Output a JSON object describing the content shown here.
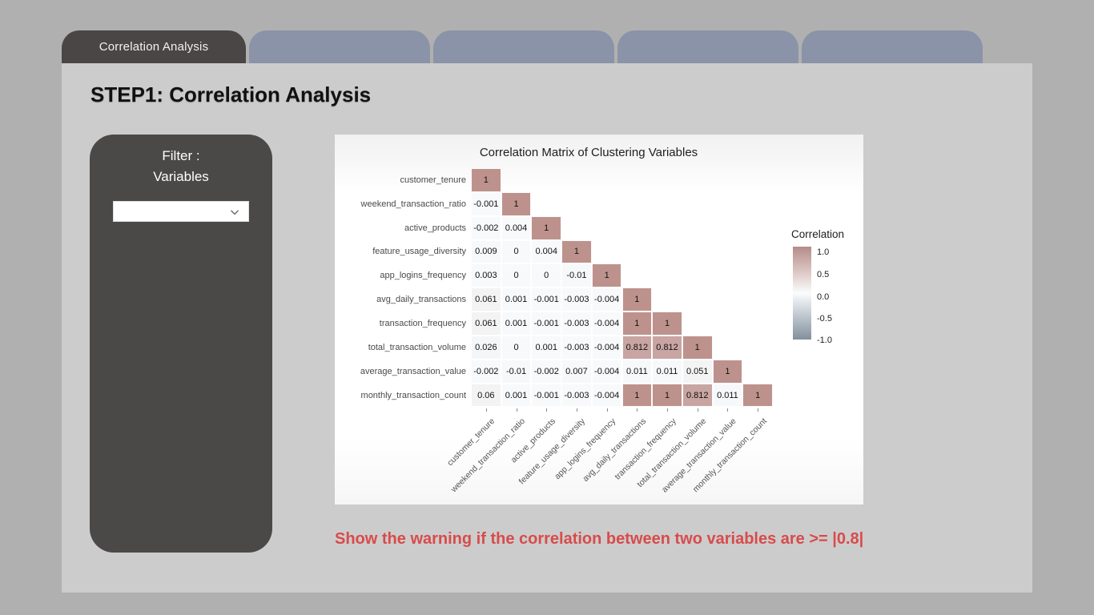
{
  "tabs": {
    "items": [
      {
        "label": "Correlation Analysis",
        "active": true
      },
      {
        "label": "",
        "active": false
      },
      {
        "label": "",
        "active": false
      },
      {
        "label": "",
        "active": false
      },
      {
        "label": "",
        "active": false
      }
    ]
  },
  "page_title": "STEP1: Correlation Analysis",
  "sidebar": {
    "filter_label_line1": "Filter :",
    "filter_label_line2": "Variables",
    "dropdown_value": "",
    "dropdown_icon": "chevron-down-icon"
  },
  "warning_text": "Show the warning if the correlation between two variables are >= |0.8|",
  "colors": {
    "page_background": "#b1b0b0",
    "content_background": "#cdcccc",
    "active_tab": "#494645",
    "inactive_tab": "#8b93a8",
    "sidebar_panel": "#4b4848",
    "warning_red": "#d84b4b"
  },
  "chart_data": {
    "type": "heatmap",
    "title": "Correlation Matrix of Clustering Variables",
    "variables": [
      "customer_tenure",
      "weekend_transaction_ratio",
      "active_products",
      "feature_usage_diversity",
      "app_logins_frequency",
      "avg_daily_transactions",
      "transaction_frequency",
      "total_transaction_volume",
      "average_transaction_value",
      "monthly_transaction_count"
    ],
    "matrix_lower_triangle": [
      [
        1
      ],
      [
        -0.001,
        1
      ],
      [
        -0.002,
        0.004,
        1
      ],
      [
        0.009,
        0,
        0.004,
        1
      ],
      [
        0.003,
        0,
        0,
        -0.01,
        1
      ],
      [
        0.061,
        0.001,
        -0.001,
        -0.003,
        -0.004,
        1
      ],
      [
        0.061,
        0.001,
        -0.001,
        -0.003,
        -0.004,
        1,
        1
      ],
      [
        0.026,
        0,
        0.001,
        -0.003,
        -0.004,
        0.812,
        0.812,
        1
      ],
      [
        -0.002,
        -0.01,
        -0.002,
        0.007,
        -0.004,
        0.011,
        0.011,
        0.051,
        1
      ],
      [
        0.06,
        0.001,
        -0.001,
        -0.003,
        -0.004,
        1,
        1,
        0.812,
        0.011,
        1
      ]
    ],
    "value_range": [
      -1,
      1
    ],
    "legend": {
      "title": "Correlation",
      "ticks": [
        "1.0",
        "0.5",
        "0.0",
        "-0.5",
        "-1.0"
      ],
      "positive_color": "#bd928d",
      "zero_color": "#f7f9fb",
      "negative_color": "#7e8b98"
    },
    "grid": false,
    "legend_position": "right"
  }
}
